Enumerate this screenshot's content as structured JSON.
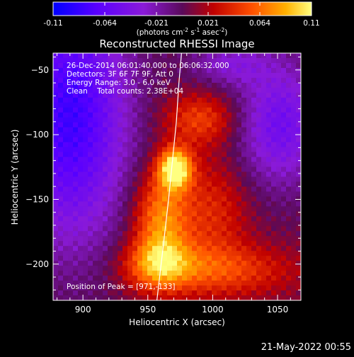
{
  "chart_data": {
    "type": "heatmap",
    "title": "Reconstructed RHESSI Image",
    "xlabel": "Heliocentric X (arcsec)",
    "ylabel": "Heliocentric Y (arcsec)",
    "xlim": [
      877,
      1068
    ],
    "ylim": [
      -228,
      -37
    ],
    "x_ticks": [
      900,
      950,
      1000,
      1050
    ],
    "y_ticks": [
      -50,
      -100,
      -150,
      -200
    ],
    "colorbar": {
      "min": -0.11,
      "max": 0.11,
      "ticks": [
        "-0.11",
        "-0.064",
        "-0.021",
        "0.021",
        "0.064",
        "0.11"
      ],
      "unit_label_parts": [
        "(photons cm",
        "-2",
        " s",
        "-1",
        " asec",
        "-2",
        ")"
      ]
    },
    "info_lines": [
      "26-Dec-2014 06:01:40.000 to 06:06:32.000",
      "Detectors: 3F 6F 7F 9F, Att 0",
      "Energy Range: 3.0 - 6.0 keV",
      "Clean    Total counts: 2.38E+04"
    ],
    "peak_label": "Position of Peak = [971,-133]",
    "peak": {
      "x": 971,
      "y": -133
    },
    "limb_curve": [
      [
        957,
        -228
      ],
      [
        962,
        -185
      ],
      [
        966,
        -150
      ],
      [
        969,
        -120
      ],
      [
        972,
        -90
      ],
      [
        974,
        -60
      ],
      [
        976,
        -37
      ]
    ],
    "sources": [
      {
        "x": 971,
        "y": -126,
        "amp": 0.11,
        "sx": 9,
        "sy": 11
      },
      {
        "x": 960,
        "y": -165,
        "amp": 0.07,
        "sx": 15,
        "sy": 26
      },
      {
        "x": 958,
        "y": -200,
        "amp": 0.06,
        "sx": 18,
        "sy": 14
      },
      {
        "x": 990,
        "y": -88,
        "amp": 0.045,
        "sx": 20,
        "sy": 14
      },
      {
        "x": 1005,
        "y": -205,
        "amp": 0.045,
        "sx": 40,
        "sy": 14
      },
      {
        "x": 1000,
        "y": -160,
        "amp": 0.035,
        "sx": 20,
        "sy": 30
      }
    ],
    "cold_regions": [
      {
        "x": 890,
        "y": -85,
        "amp": -0.09,
        "sx": 32,
        "sy": 70
      },
      {
        "x": 1052,
        "y": -92,
        "amp": -0.06,
        "sx": 24,
        "sy": 35
      },
      {
        "x": 1012,
        "y": -45,
        "amp": -0.035,
        "sx": 22,
        "sy": 12
      }
    ]
  },
  "footer": {
    "date": "21-May-2022 00:55"
  }
}
